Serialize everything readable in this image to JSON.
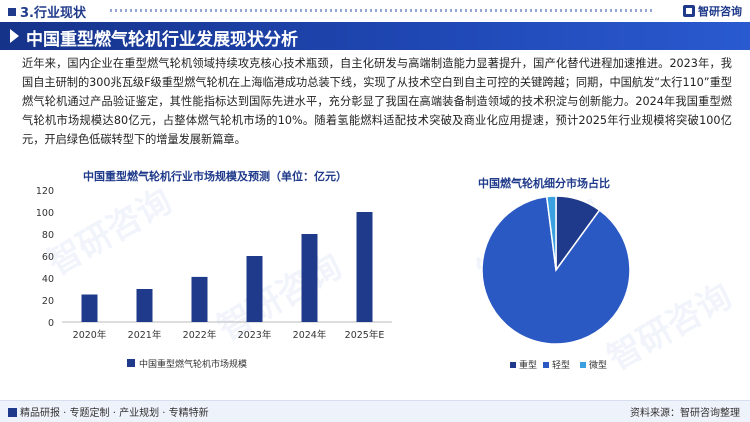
{
  "header": {
    "section": "3.行业现状",
    "logo": "智研咨询",
    "title": "中国重型燃气轮机行业发展现状分析"
  },
  "intro": "近年来，国内企业在重型燃气轮机领域持续攻克核心技术瓶颈，自主化研发与高端制造能力显著提升，国产化替代进程加速推进。2023年，我国自主研制的300兆瓦级F级重型燃气轮机在上海临港成功总装下线，实现了从技术空白到自主可控的关键跨越；同期，中国航发“太行110”重型燃气轮机通过产品验证鉴定，其性能指标达到国际先进水平，充分彰显了我国在高端装备制造领域的技术积淀与创新能力。2024年我国重型燃气轮机市场规模达80亿元，占整体燃气轮机市场的10%。随着氢能燃料适配技术突破及商业化应用提速，预计2025年行业规模将突破100亿元，开启绿色低碳转型下的增量发展新篇章。",
  "watermark": "智研咨询",
  "colors": {
    "accent": "#1f3a8a",
    "bar": "#1f3a8a",
    "pie": [
      "#1f3a8a",
      "#2b59c3",
      "#3aa0e0"
    ]
  },
  "chart_data": [
    {
      "type": "bar",
      "title": "中国重型燃气轮机行业市场规模及预测（单位：亿元）",
      "categories": [
        "2020年",
        "2021年",
        "2022年",
        "2023年",
        "2024年",
        "2025年E"
      ],
      "series": [
        {
          "name": "中国重型燃气轮机市场规模",
          "values": [
            25,
            30,
            41,
            60,
            80,
            100
          ]
        }
      ],
      "ylim": [
        0,
        120
      ],
      "yticks": [
        0,
        20,
        40,
        60,
        80,
        100,
        120
      ],
      "grid": false,
      "legend": "bottom"
    },
    {
      "type": "pie",
      "title": "中国燃气轮机细分市场占比",
      "labels": [
        "重型",
        "轻型",
        "微型"
      ],
      "values": [
        10,
        88,
        2
      ],
      "legend": "bottom"
    }
  ],
  "footer": {
    "left": "精品研报 · 专题定制 · 产业规划 · 专精特新",
    "right": "资料来源：智研咨询整理"
  }
}
